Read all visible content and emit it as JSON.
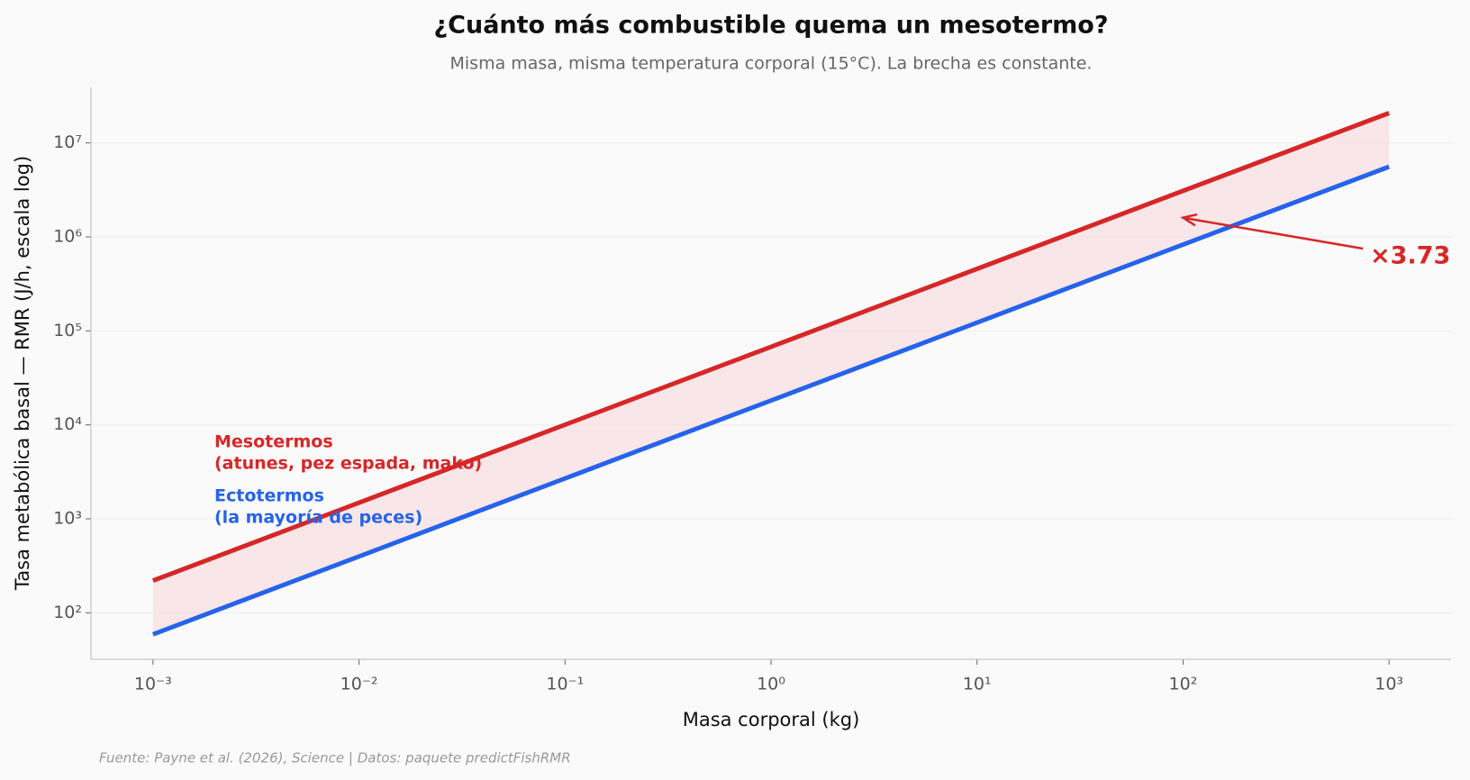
{
  "chart_data": {
    "type": "line",
    "title": "¿Cuánto más combustible quema un mesotermo?",
    "subtitle": "Misma masa, misma temperatura corporal (15°C). La brecha es constante.",
    "x_label": "Masa corporal (kg)",
    "y_label": "Tasa metabólica basal — RMR (J/h, escala log)",
    "source": "Fuente: Payne et al. (2026), Science | Datos: paquete predictFishRMR",
    "x": [
      0.001,
      0.01,
      0.1,
      1,
      10,
      100,
      1000
    ],
    "series": [
      {
        "name": "Mesotermos",
        "description": "(atunes, pez espada, mako)",
        "color": "#d62728",
        "values": [
          220,
          1485,
          10030,
          67700,
          457000,
          3090000,
          20800000
        ]
      },
      {
        "name": "Ectotermos",
        "description": "(la mayoría de peces)",
        "color": "#2563eb",
        "values": [
          59,
          398,
          2690,
          18150,
          122500,
          828000,
          5580000
        ]
      }
    ],
    "fill_between": {
      "color": "#f6dde0"
    },
    "annotation": {
      "text": "×3.73",
      "x": 100,
      "y": 1600000,
      "color": "#d62728"
    },
    "x_log": true,
    "y_log": true,
    "xlim": [
      0.0005,
      2000
    ],
    "ylim": [
      32,
      39000000
    ],
    "xticks": [
      {
        "value": 0.001,
        "label": "10⁻³"
      },
      {
        "value": 0.01,
        "label": "10⁻²"
      },
      {
        "value": 0.1,
        "label": "10⁻¹"
      },
      {
        "value": 1,
        "label": "10⁰"
      },
      {
        "value": 10,
        "label": "10¹"
      },
      {
        "value": 100,
        "label": "10²"
      },
      {
        "value": 1000,
        "label": "10³"
      }
    ],
    "yticks": [
      {
        "value": 100,
        "label": "10²"
      },
      {
        "value": 1000,
        "label": "10³"
      },
      {
        "value": 10000,
        "label": "10⁴"
      },
      {
        "value": 100000,
        "label": "10⁵"
      },
      {
        "value": 1000000,
        "label": "10⁶"
      },
      {
        "value": 10000000,
        "label": "10⁷"
      }
    ],
    "grid": true
  }
}
